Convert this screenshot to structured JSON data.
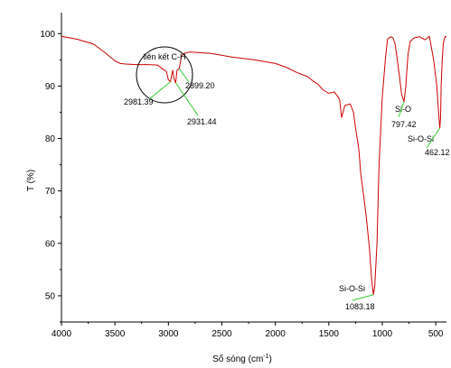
{
  "chart_data": {
    "type": "line",
    "title": "",
    "xlabel": "Số sóng (cm",
    "xlabel_sup": "-1",
    "xlabel_suffix": ")",
    "ylabel": "T (%)",
    "xlim": [
      4000,
      400
    ],
    "ylim": [
      45,
      104
    ],
    "x_reversed": true,
    "x_ticks": [
      4000,
      3500,
      3000,
      2500,
      2000,
      1500,
      1000,
      500
    ],
    "y_ticks": [
      50,
      60,
      70,
      80,
      90,
      100
    ],
    "grid": false,
    "legend": "none",
    "series": [
      {
        "color": "#cc0000",
        "x": [
          4000,
          3850,
          3700,
          3600,
          3500,
          3450,
          3400,
          3300,
          3200,
          3100,
          3050,
          3020,
          3000,
          2981.39,
          2960,
          2950,
          2931.44,
          2920,
          2899.2,
          2880,
          2860,
          2800,
          2600,
          2400,
          2200,
          2000,
          1900,
          1800,
          1700,
          1650,
          1600,
          1550,
          1500,
          1450,
          1400,
          1380,
          1350,
          1300,
          1270,
          1250,
          1220,
          1200,
          1180,
          1150,
          1120,
          1100,
          1083.18,
          1070,
          1050,
          1030,
          1000,
          970,
          950,
          920,
          900,
          880,
          860,
          840,
          820,
          797.42,
          780,
          760,
          740,
          700,
          650,
          600,
          560,
          520,
          490,
          470,
          462.12,
          455,
          450,
          440,
          430,
          420,
          410,
          400
        ],
        "values": [
          99.5,
          98.9,
          98.0,
          96.5,
          94.8,
          94.3,
          94.2,
          94.1,
          94.1,
          94.0,
          93.2,
          92.8,
          91.2,
          90.8,
          93.0,
          91.6,
          90.6,
          93.0,
          93.3,
          95.5,
          96.2,
          96.5,
          96.2,
          95.5,
          95.0,
          94.3,
          93.6,
          92.6,
          91.8,
          91.0,
          90.3,
          89.2,
          88.6,
          88.9,
          87.5,
          84.0,
          86.3,
          86.6,
          85.0,
          82.0,
          78.0,
          73.0,
          70.0,
          65.0,
          59.0,
          53.0,
          50.2,
          52.0,
          60.0,
          75.0,
          88.0,
          95.5,
          99.0,
          99.4,
          99.2,
          98.0,
          95.0,
          92.0,
          88.5,
          87.0,
          90.0,
          96.0,
          98.5,
          99.2,
          99.4,
          98.8,
          99.5,
          95.0,
          90.0,
          84.0,
          82.0,
          84.0,
          90.0,
          95.0,
          98.0,
          99.0,
          99.5,
          99.3
        ]
      }
    ],
    "annotations": [
      {
        "text": "liên kết C-H",
        "kind": "circle-label"
      },
      {
        "text": "2981.39",
        "x": 2981.39,
        "y": 90.8
      },
      {
        "text": "2899.20",
        "x": 2899.2,
        "y": 93.3
      },
      {
        "text": "2931.44",
        "x": 2931.44,
        "y": 90.6
      },
      {
        "text": "Si-O",
        "x": 797.42,
        "y": 87.0
      },
      {
        "text": "797.42",
        "x": 797.42,
        "y": 87.0
      },
      {
        "text": "Si-O-Si",
        "x": 462.12,
        "y": 82.0
      },
      {
        "text": "462.12",
        "x": 462.12,
        "y": 82.0
      },
      {
        "text": "Si-O-Si",
        "x": 1083.18,
        "y": 50.2
      },
      {
        "text": "1083.18",
        "x": 1083.18,
        "y": 50.2
      }
    ]
  },
  "colors": {
    "series_line": "#cc0000",
    "leader_lines": "#33cc33",
    "axes": "#000000"
  }
}
